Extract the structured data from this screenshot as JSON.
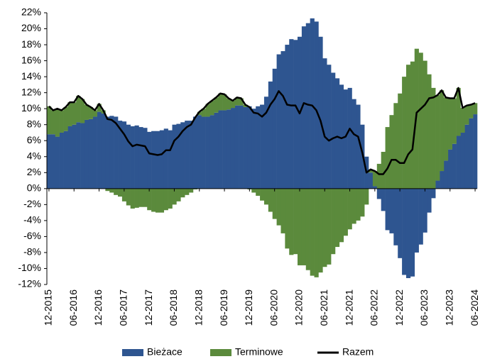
{
  "chart_data": {
    "type": "bar",
    "stacked": true,
    "categories": [
      "12-2015",
      null,
      null,
      null,
      null,
      null,
      "06-2016",
      null,
      null,
      null,
      null,
      null,
      "12-2016",
      null,
      null,
      null,
      null,
      null,
      "06-2017",
      null,
      null,
      null,
      null,
      null,
      "12-2017",
      null,
      null,
      null,
      null,
      null,
      "06-2018",
      null,
      null,
      null,
      null,
      null,
      "12-2018",
      null,
      null,
      null,
      null,
      null,
      "06-2019",
      null,
      null,
      null,
      null,
      null,
      "12-2019",
      null,
      null,
      null,
      null,
      null,
      "06-2020",
      null,
      null,
      null,
      null,
      null,
      "12-2020",
      null,
      null,
      null,
      null,
      null,
      "06-2021",
      null,
      null,
      null,
      null,
      null,
      "12-2021",
      null,
      null,
      null,
      null,
      null,
      "06-2022",
      null,
      null,
      null,
      null,
      null,
      "12-2022",
      null,
      null,
      null,
      null,
      null,
      "06-2023",
      null,
      null,
      null,
      null,
      null,
      "12-2023",
      null,
      null,
      null,
      null,
      null,
      "06-2024"
    ],
    "series": [
      {
        "name": "Bieżace",
        "type": "bar",
        "color": "#2e5590",
        "values": [
          6.8,
          6.8,
          6.5,
          7.0,
          7.2,
          7.8,
          8.0,
          8.3,
          8.2,
          8.6,
          8.7,
          9.0,
          9.6,
          9.4,
          9.0,
          9.1,
          9.0,
          8.5,
          8.4,
          8.0,
          7.8,
          7.9,
          7.7,
          7.6,
          7.1,
          7.2,
          7.2,
          7.3,
          7.5,
          7.3,
          8.0,
          8.1,
          8.3,
          8.5,
          8.5,
          9.0,
          9.2,
          9.0,
          9.0,
          9.2,
          9.5,
          9.8,
          9.8,
          9.9,
          10.1,
          10.4,
          10.4,
          10.2,
          10.3,
          10.0,
          10.3,
          10.5,
          11.5,
          13.4,
          15.0,
          16.8,
          17.2,
          18.0,
          18.7,
          18.6,
          19.0,
          20.3,
          20.7,
          21.3,
          20.9,
          19.0,
          16.3,
          15.5,
          14.5,
          13.8,
          13.0,
          12.4,
          12.6,
          11.2,
          10.5,
          8.0,
          4.0,
          2.0,
          0.3,
          -1.3,
          -2.8,
          -5.2,
          -5.6,
          -7.1,
          -8.7,
          -10.8,
          -11.2,
          -11.0,
          -8.0,
          -7.0,
          -5.5,
          -3.0,
          -1.2,
          1.0,
          2.2,
          3.5,
          4.9,
          5.6,
          6.6,
          7.0,
          8.0,
          8.8,
          9.3
        ]
      },
      {
        "name": "Terminowe",
        "type": "bar",
        "color": "#5b8a3c",
        "values": [
          3.5,
          3.0,
          3.5,
          2.8,
          3.0,
          3.0,
          2.8,
          3.3,
          3.0,
          1.9,
          1.5,
          0.8,
          1.0,
          0.4,
          -0.3,
          -0.5,
          -0.8,
          -1.0,
          -1.6,
          -2.1,
          -2.5,
          -2.4,
          -2.3,
          -2.3,
          -2.7,
          -2.9,
          -3.0,
          -3.0,
          -2.7,
          -2.5,
          -2.0,
          -1.6,
          -1.1,
          -0.8,
          -0.5,
          -0.1,
          0.4,
          1.0,
          1.6,
          1.8,
          1.9,
          2.1,
          2.0,
          1.4,
          0.9,
          1.0,
          0.9,
          0.3,
          -0.1,
          -0.5,
          -0.9,
          -1.5,
          -2.0,
          -2.9,
          -3.8,
          -4.6,
          -5.6,
          -7.5,
          -8.3,
          -8.2,
          -9.6,
          -9.6,
          -10.2,
          -10.9,
          -11.1,
          -10.5,
          -9.8,
          -9.5,
          -8.2,
          -7.3,
          -6.7,
          -5.9,
          -5.1,
          -4.4,
          -4.0,
          -3.5,
          -2.0,
          0.4,
          1.9,
          3.1,
          4.6,
          7.7,
          9.2,
          10.7,
          11.9,
          14.0,
          15.5,
          15.9,
          17.5,
          17.0,
          16.0,
          14.3,
          12.6,
          10.7,
          10.1,
          7.9,
          6.4,
          5.7,
          6.0,
          3.1,
          2.4,
          1.7,
          1.4
        ]
      },
      {
        "name": "Razem",
        "type": "line",
        "color": "#000000",
        "values": [
          10.3,
          9.8,
          10.0,
          9.8,
          10.2,
          10.8,
          10.8,
          11.6,
          11.2,
          10.5,
          10.2,
          9.8,
          10.6,
          9.8,
          8.7,
          8.6,
          8.2,
          7.5,
          6.8,
          5.9,
          5.3,
          5.5,
          5.4,
          5.3,
          4.4,
          4.3,
          4.2,
          4.3,
          4.8,
          4.8,
          6.0,
          6.5,
          7.2,
          7.7,
          8.0,
          8.9,
          9.6,
          10.0,
          10.6,
          11.0,
          11.4,
          11.9,
          11.8,
          11.3,
          11.0,
          11.4,
          11.3,
          10.5,
          10.2,
          9.5,
          9.4,
          9.0,
          9.5,
          10.5,
          11.2,
          12.2,
          11.6,
          10.5,
          10.4,
          10.4,
          9.4,
          10.7,
          10.5,
          10.4,
          9.8,
          8.5,
          6.5,
          6.0,
          6.3,
          6.5,
          6.3,
          6.5,
          7.5,
          6.8,
          6.5,
          4.5,
          2.0,
          2.4,
          2.2,
          1.8,
          1.8,
          2.5,
          3.6,
          3.6,
          3.2,
          3.2,
          4.3,
          4.9,
          9.5,
          10.0,
          10.5,
          11.3,
          11.4,
          11.7,
          12.3,
          11.4,
          11.3,
          11.3,
          12.6,
          10.1,
          10.4,
          10.5,
          10.7
        ]
      }
    ],
    "ylim": [
      -12,
      22
    ],
    "yticks": [
      {
        "value": -12,
        "label": "-12%"
      },
      {
        "value": -10,
        "label": "-10%"
      },
      {
        "value": -8,
        "label": "-8%"
      },
      {
        "value": -6,
        "label": "-6%"
      },
      {
        "value": -4,
        "label": "-4%"
      },
      {
        "value": -2,
        "label": "-2%"
      },
      {
        "value": 0,
        "label": "0%"
      },
      {
        "value": 2,
        "label": "2%"
      },
      {
        "value": 4,
        "label": "4%"
      },
      {
        "value": 6,
        "label": "6%"
      },
      {
        "value": 8,
        "label": "8%"
      },
      {
        "value": 10,
        "label": "10%"
      },
      {
        "value": 12,
        "label": "12%"
      },
      {
        "value": 14,
        "label": "14%"
      },
      {
        "value": 16,
        "label": "16%"
      },
      {
        "value": 18,
        "label": "18%"
      },
      {
        "value": 20,
        "label": "20%"
      },
      {
        "value": 22,
        "label": "22%"
      }
    ],
    "grid": false,
    "legend": "bottom"
  }
}
